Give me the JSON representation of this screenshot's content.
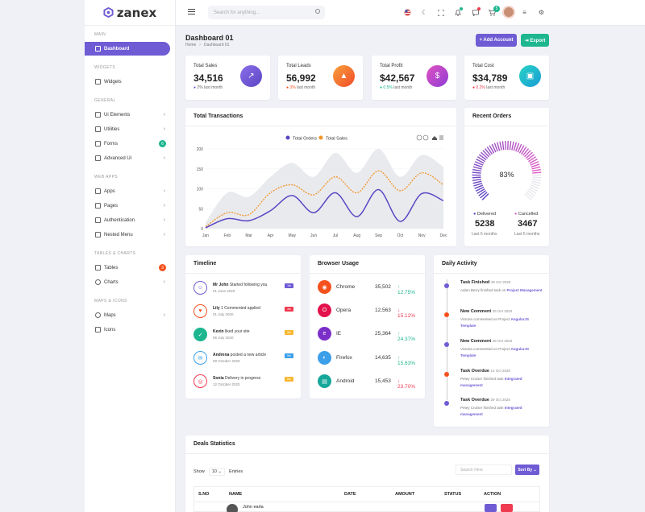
{
  "logo": {
    "text": "zanex"
  },
  "sidebar": {
    "sections": {
      "main": "MAIN",
      "widgets": "WIDGETS",
      "general": "GENERAL",
      "webapps": "WEB APPS",
      "tables": "TABLES & CHARTS",
      "maps": "MAPS & ICONS"
    },
    "items": {
      "dashboard": "Dashboard",
      "widgets": "Widgets",
      "ui": "Ui Elements",
      "utilities": "Utilities",
      "forms": "Forms",
      "forms_badge": "6",
      "advanced": "Advanced Ui",
      "apps": "Apps",
      "pages": "Pages",
      "auth": "Authentication",
      "nested": "Nested Menu",
      "tables": "Tables",
      "tables_badge": "3",
      "charts": "Charts",
      "maps": "Maps",
      "icons": "Icons"
    }
  },
  "topbar": {
    "search_placeholder": "Search for anything...",
    "cart_badge": "5"
  },
  "page": {
    "title": "Dashboard 01",
    "breadcrumb_home": "Home",
    "breadcrumb_sep": ">",
    "breadcrumb_current": "Dashboard 01",
    "add_account": "+ Add Account",
    "export": "⇥ Export"
  },
  "stats": [
    {
      "label": "Total Sales",
      "value": "34,516",
      "change": "2%",
      "suffix": "last month",
      "color": "#6f5bd4"
    },
    {
      "label": "Total Leads",
      "value": "56,992",
      "change": "3%",
      "suffix": "last month",
      "color": "#f4511e"
    },
    {
      "label": "Total Profit",
      "value": "$42,567",
      "change": "0.5%",
      "suffix": "last month",
      "color": "#1db68f"
    },
    {
      "label": "Total Cost",
      "value": "$34,789",
      "change": "0.2%",
      "suffix": "last month",
      "color": "#ef3a50"
    }
  ],
  "transactions": {
    "title": "Total Transactions",
    "legend_orders": "Total Orders",
    "legend_sales": "Total Sales"
  },
  "chart_data": {
    "type": "line",
    "title": "Total Transactions",
    "categories": [
      "Jan",
      "Feb",
      "Mar",
      "Apr",
      "May",
      "Jun",
      "Jul",
      "Aug",
      "Sep",
      "Oct",
      "Nov",
      "Dec"
    ],
    "yticks": [
      0,
      50,
      100,
      150,
      200
    ],
    "ylim": [
      0,
      200
    ],
    "series": [
      {
        "name": "Total Orders",
        "color": "#5b45c4",
        "values": [
          2,
          25,
          20,
          45,
          83,
          40,
          90,
          30,
          98,
          18,
          88,
          70
        ]
      },
      {
        "name": "Total Sales",
        "color": "#f2962a",
        "values": [
          5,
          40,
          35,
          90,
          110,
          85,
          130,
          90,
          145,
          95,
          140,
          110
        ]
      }
    ],
    "area": {
      "values": [
        15,
        90,
        80,
        130,
        165,
        130,
        190,
        140,
        200,
        130,
        185,
        155
      ],
      "color": "#e4e5ea"
    },
    "legend": "top"
  },
  "recent_orders": {
    "title": "Recent Orders",
    "percent": "83%",
    "delivered_label": "Delivered",
    "delivered_value": "5238",
    "cancelled_label": "Cancelled",
    "cancelled_value": "3467",
    "period": "Last 6 months",
    "gauge_fraction": 0.83
  },
  "timeline": {
    "title": "Timeline",
    "items": [
      {
        "name": "Mr John",
        "text": "Started following you",
        "date": "01 June 2020",
        "badge": "1m",
        "color": "#6f5bd4"
      },
      {
        "name": "Lily",
        "text": "1 Commented applied",
        "date": "01 July 2020",
        "badge": "3m",
        "color": "#f4511e"
      },
      {
        "name": "Kevin",
        "text": "liked your site",
        "date": "05 July 2020",
        "badge": "5m",
        "color": "#1db68f"
      },
      {
        "name": "Andrena",
        "text": "posted a new article",
        "date": "09 October 2020",
        "badge": "5m",
        "color": "#3b9fe9"
      },
      {
        "name": "Sonia",
        "text": "Delivery in progress",
        "date": "12 October 2020",
        "badge": "5m",
        "color": "#ef3a50"
      }
    ]
  },
  "browser": {
    "title": "Browser Usage",
    "items": [
      {
        "name": "Chrome",
        "value": "35,502",
        "change": "↑ 12.75%",
        "up": true,
        "color": "#f4511e"
      },
      {
        "name": "Opera",
        "value": "12,563",
        "change": "↓ 15.12%",
        "up": false,
        "color": "#e3124c"
      },
      {
        "name": "IE",
        "value": "25,364",
        "change": "↑ 24.37%",
        "up": true,
        "color": "#7b2fc9"
      },
      {
        "name": "Firefox",
        "value": "14,635",
        "change": "↑ 15.63%",
        "up": true,
        "color": "#3b9fe9"
      },
      {
        "name": "Android",
        "value": "15,453",
        "change": "↓ 23.70%",
        "up": false,
        "color": "#16a79a"
      }
    ]
  },
  "activity": {
    "title": "Daily Activity",
    "items": [
      {
        "title": "Task Finished",
        "date": "29 Oct 2020",
        "desc": "Adam Berry finished task on",
        "link": "Project Management",
        "color": "#6f5bd4"
      },
      {
        "title": "New Comment",
        "date": "25 Oct 2020",
        "desc": "Victoria commented on Project",
        "link": "AngularJS Template",
        "color": "#f4511e"
      },
      {
        "title": "New Comment",
        "date": "25 Oct 2020",
        "desc": "Victoria commented on Project",
        "link": "AngularJS Template",
        "color": "#6f5bd4"
      },
      {
        "title": "Task Overdue",
        "date": "14 Oct 2020",
        "desc": "Petey Cruiser finished task",
        "link": "Integrated management",
        "color": "#f4511e"
      },
      {
        "title": "Task Overdue",
        "date": "29 Oct 2020",
        "desc": "Petey Cruiser finished task",
        "link": "Integrated management",
        "color": "#6f5bd4"
      }
    ]
  },
  "deals": {
    "title": "Deals Statistics",
    "show": "Show",
    "entries_value": "10",
    "entries": "Entries",
    "search_placeholder": "Search Here",
    "sort": "Sort By ⌄",
    "columns": [
      "S.NO",
      "NAME",
      "DATE",
      "AMOUNT",
      "STATUS",
      "ACTION"
    ],
    "first_row_name": "John earla"
  }
}
